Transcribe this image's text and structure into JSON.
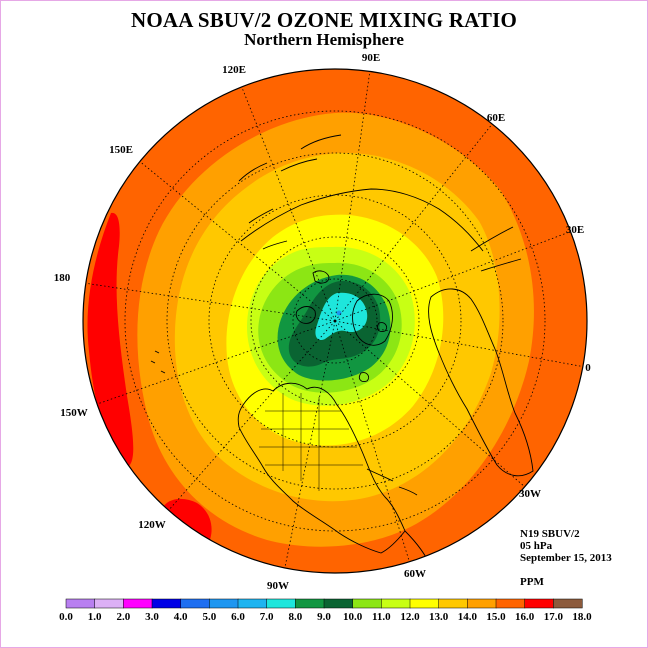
{
  "title": "NOAA SBUV/2 OZONE MIXING RATIO",
  "subtitle": "Northern Hemisphere",
  "longitude_labels": [
    "90E",
    "60E",
    "30E",
    "0",
    "30W",
    "60W",
    "90W",
    "120W",
    "150W",
    "180",
    "150E",
    "120E"
  ],
  "info": {
    "instrument": "N19 SBUV/2",
    "pressure_level": "05 hPa",
    "date": "September 15, 2013",
    "units": "PPM"
  },
  "colorbar": {
    "tick_labels": [
      "0.0",
      "1.0",
      "2.0",
      "3.0",
      "4.0",
      "5.0",
      "6.0",
      "7.0",
      "8.0",
      "9.0",
      "10.0",
      "11.0",
      "12.0",
      "13.0",
      "14.0",
      "15.0",
      "16.0",
      "17.0",
      "18.0"
    ],
    "colors": [
      "#b87ff0",
      "#dcb0f5",
      "#ff00ff",
      "#0000e6",
      "#1e6ef0",
      "#1e96f0",
      "#1eb4f0",
      "#1ee6dc",
      "#119641",
      "#0a6432",
      "#8ce614",
      "#c8ff14",
      "#ffff00",
      "#ffc800",
      "#ffa000",
      "#ff6400",
      "#ff0000",
      "#8c5a3c"
    ]
  },
  "map_colors": {
    "min_region": "#1ee6dc",
    "dark_green": "#0a6432",
    "mid_green": "#119641",
    "light_green": "#8ce614",
    "yellow_green": "#c8ff14",
    "yellow": "#ffff00",
    "gold": "#ffc800",
    "light_orange": "#ffa000",
    "orange": "#ff6400",
    "red_max": "#ff0000",
    "coastline": "#000000",
    "graticule": "#000000"
  }
}
